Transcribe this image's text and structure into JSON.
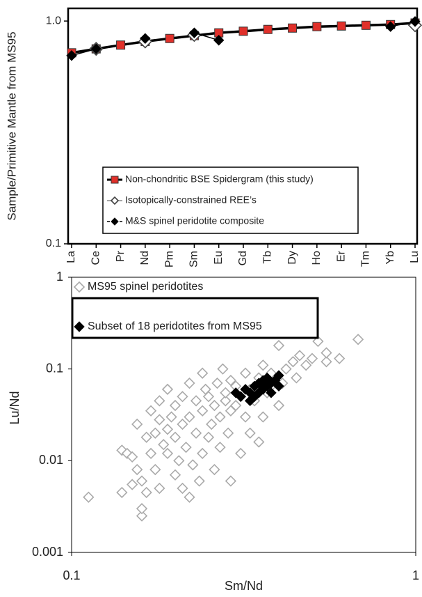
{
  "chart_data": [
    {
      "type": "line",
      "y_label": "Sample/Primitive Mantle from MS95",
      "categories": [
        "La",
        "Ce",
        "Pr",
        "Nd",
        "Pm",
        "Sm",
        "Eu",
        "Gd",
        "Tb",
        "Dy",
        "Ho",
        "Er",
        "Tm",
        "Yb",
        "Lu"
      ],
      "ylim": [
        0.1,
        1.14
      ],
      "yticks": [
        0.1,
        {
          "value": 1,
          "label": "1.0"
        }
      ],
      "ylog": true,
      "grid": false,
      "legend": "center",
      "series": [
        {
          "name": "Non-chondritic BSE Spidergram (this study)",
          "color": "#e0302a",
          "line_color": "#000000",
          "marker": "square",
          "filled": true,
          "values": [
            0.72,
            0.75,
            0.78,
            0.81,
            0.835,
            0.86,
            0.885,
            0.9,
            0.917,
            0.93,
            0.944,
            0.95,
            0.957,
            0.964,
            0.98
          ]
        },
        {
          "name": "Isotopically-constrained REE’s",
          "color": "#444444",
          "line_color": "#888888",
          "marker": "diamond",
          "filled": false,
          "values": [
            null,
            0.75,
            null,
            0.81,
            null,
            0.866,
            null,
            null,
            null,
            null,
            null,
            null,
            null,
            null,
            0.957
          ]
        },
        {
          "name": "M&S spinel peridotite composite",
          "color": "#000000",
          "line_color": "#000000",
          "marker": "diamond",
          "filled": true,
          "values": [
            0.7,
            0.75,
            null,
            0.835,
            null,
            0.885,
            0.82,
            null,
            null,
            null,
            null,
            null,
            null,
            0.944,
            0.995
          ]
        }
      ]
    },
    {
      "type": "scatter",
      "x_label": "Sm/Nd",
      "y_label": "Lu/Nd",
      "xlim": [
        0.1,
        1
      ],
      "xticks": [
        0.1,
        1
      ],
      "ylim": [
        0.001,
        1
      ],
      "yticks": [
        0.001,
        0.01,
        0.1,
        1
      ],
      "xlog": true,
      "ylog": true,
      "grid": false,
      "legend": "upper left",
      "series": [
        {
          "name": "MS95 spinel peridotites",
          "color": "#aaaaaa",
          "filled": false,
          "x": [
            0.112,
            0.14,
            0.14,
            0.145,
            0.15,
            0.15,
            0.155,
            0.155,
            0.16,
            0.16,
            0.16,
            0.165,
            0.165,
            0.17,
            0.17,
            0.175,
            0.175,
            0.18,
            0.18,
            0.18,
            0.185,
            0.19,
            0.19,
            0.19,
            0.195,
            0.2,
            0.2,
            0.2,
            0.205,
            0.21,
            0.21,
            0.21,
            0.215,
            0.22,
            0.22,
            0.22,
            0.225,
            0.23,
            0.23,
            0.235,
            0.24,
            0.24,
            0.24,
            0.245,
            0.25,
            0.25,
            0.255,
            0.26,
            0.26,
            0.265,
            0.27,
            0.27,
            0.275,
            0.28,
            0.28,
            0.285,
            0.29,
            0.29,
            0.29,
            0.3,
            0.3,
            0.31,
            0.31,
            0.32,
            0.32,
            0.33,
            0.33,
            0.34,
            0.35,
            0.35,
            0.36,
            0.36,
            0.37,
            0.38,
            0.38,
            0.4,
            0.4,
            0.41,
            0.42,
            0.44,
            0.45,
            0.46,
            0.48,
            0.5,
            0.5,
            0.52,
            0.55,
            0.55,
            0.6,
            0.68
          ],
          "y": [
            0.004,
            0.013,
            0.0045,
            0.012,
            0.0055,
            0.011,
            0.008,
            0.025,
            0.0025,
            0.003,
            0.006,
            0.0045,
            0.018,
            0.012,
            0.035,
            0.02,
            0.008,
            0.005,
            0.028,
            0.045,
            0.015,
            0.012,
            0.06,
            0.022,
            0.03,
            0.007,
            0.018,
            0.04,
            0.01,
            0.005,
            0.025,
            0.05,
            0.014,
            0.004,
            0.03,
            0.07,
            0.009,
            0.02,
            0.045,
            0.006,
            0.012,
            0.035,
            0.09,
            0.06,
            0.018,
            0.05,
            0.025,
            0.008,
            0.04,
            0.07,
            0.014,
            0.03,
            0.1,
            0.045,
            0.055,
            0.02,
            0.006,
            0.035,
            0.075,
            0.065,
            0.04,
            0.05,
            0.012,
            0.03,
            0.09,
            0.02,
            0.06,
            0.045,
            0.08,
            0.016,
            0.03,
            0.11,
            0.055,
            0.065,
            0.09,
            0.04,
            0.18,
            0.07,
            0.1,
            0.12,
            0.08,
            0.14,
            0.11,
            0.13,
            0.3,
            0.2,
            0.12,
            0.15,
            0.13,
            0.21
          ]
        },
        {
          "name": "Subset of 18 peridotites from MS95",
          "color": "#000000",
          "filled": true,
          "x": [
            0.3,
            0.31,
            0.32,
            0.33,
            0.33,
            0.34,
            0.34,
            0.35,
            0.35,
            0.36,
            0.36,
            0.37,
            0.37,
            0.38,
            0.38,
            0.39,
            0.4,
            0.4
          ],
          "y": [
            0.055,
            0.05,
            0.06,
            0.045,
            0.055,
            0.065,
            0.05,
            0.07,
            0.055,
            0.075,
            0.06,
            0.065,
            0.08,
            0.07,
            0.055,
            0.075,
            0.085,
            0.065
          ]
        }
      ]
    }
  ]
}
